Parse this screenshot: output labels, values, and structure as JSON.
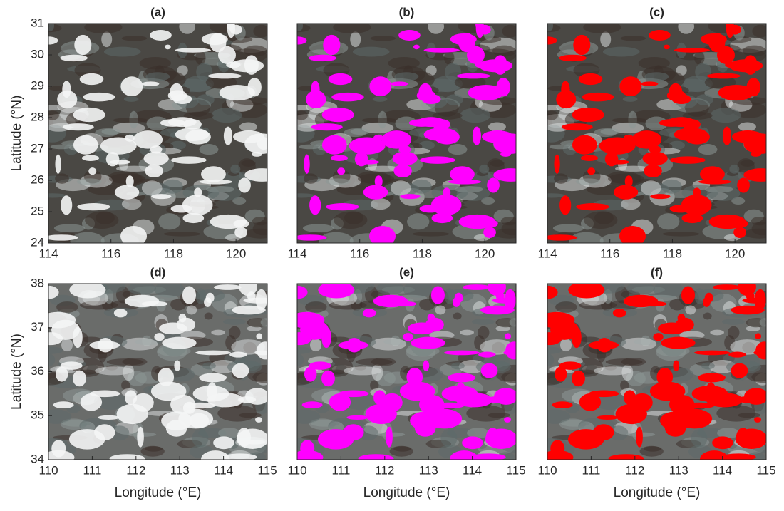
{
  "chart_data": [
    {
      "type": "image",
      "title": "(a)",
      "xlim": [
        114,
        121
      ],
      "xticks": [
        114,
        116,
        118,
        120
      ],
      "ylim": [
        24,
        31
      ],
      "yticks": [
        24,
        25,
        26,
        27,
        28,
        29,
        30,
        31
      ],
      "ylabel": "Latitude (°N)"
    },
    {
      "type": "image",
      "title": "(b)",
      "xlim": [
        114,
        121
      ],
      "xticks": [
        114,
        116,
        118,
        120
      ],
      "ylim": [
        24,
        31
      ],
      "mask_color": "#ff00ff"
    },
    {
      "type": "image",
      "title": "(c)",
      "xlim": [
        114,
        121
      ],
      "xticks": [
        114,
        116,
        118,
        120
      ],
      "ylim": [
        24,
        31
      ],
      "mask_color": "#ff0000"
    },
    {
      "type": "image",
      "title": "(d)",
      "xlim": [
        110,
        115
      ],
      "xticks": [
        110,
        111,
        112,
        113,
        114,
        115
      ],
      "ylim": [
        34,
        38
      ],
      "yticks": [
        34,
        35,
        36,
        37,
        38
      ],
      "ylabel": "Latitude (°N)",
      "xlabel": "Longitude (°E)"
    },
    {
      "type": "image",
      "title": "(e)",
      "xlim": [
        110,
        115
      ],
      "xticks": [
        110,
        111,
        112,
        113,
        114,
        115
      ],
      "ylim": [
        34,
        38
      ],
      "mask_color": "#ff00ff",
      "xlabel": "Longitude (°E)"
    },
    {
      "type": "image",
      "title": "(f)",
      "xlim": [
        110,
        115
      ],
      "xticks": [
        110,
        111,
        112,
        113,
        114,
        115
      ],
      "ylim": [
        34,
        38
      ],
      "mask_color": "#ff0000",
      "xlabel": "Longitude (°E)"
    }
  ]
}
